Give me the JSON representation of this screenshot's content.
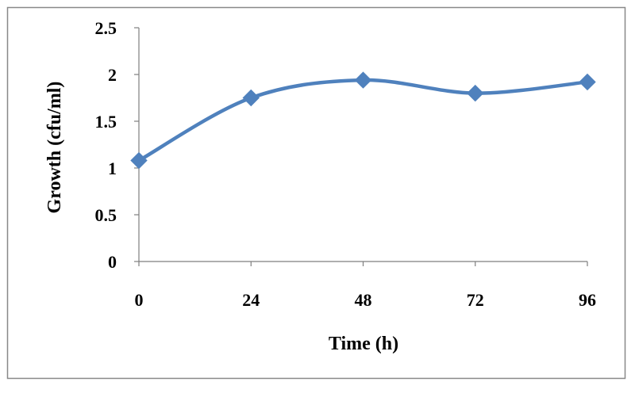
{
  "chart_data": {
    "type": "line",
    "title": "",
    "xlabel": "Time (h)",
    "ylabel": "Growth (cfu/ml)",
    "x": [
      0,
      24,
      48,
      72,
      96
    ],
    "x_tick_labels": [
      "0",
      "24",
      "48",
      "72",
      "96"
    ],
    "y_tick_labels": [
      "0",
      "0.5",
      "1",
      "1.5",
      "2",
      "2.5"
    ],
    "ylim": [
      0,
      2.5
    ],
    "xlim": [
      0,
      96
    ],
    "grid": false,
    "legend": "none",
    "smooth": true,
    "marker": "diamond",
    "series": [
      {
        "values": [
          1.08,
          1.75,
          1.94,
          1.8,
          1.92
        ],
        "color": "#4f81bd"
      }
    ],
    "frame_color": "#888888",
    "axis_color": "#7f7f7f"
  }
}
